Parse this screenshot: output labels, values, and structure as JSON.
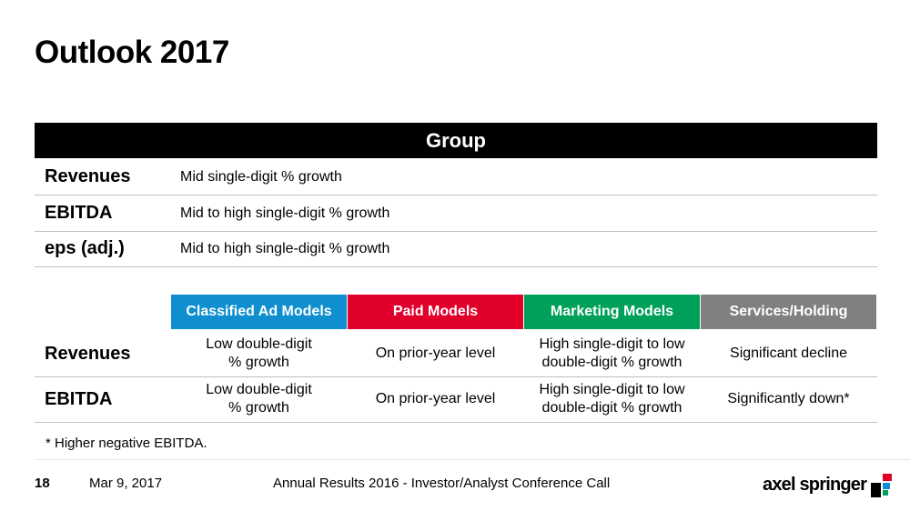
{
  "title": "Outlook 2017",
  "group": {
    "header": "Group",
    "rows": [
      {
        "label": "Revenues",
        "value": "Mid single-digit % growth"
      },
      {
        "label": "EBITDA",
        "value": "Mid to high single-digit % growth"
      },
      {
        "label": "eps (adj.)",
        "value": "Mid to high single-digit % growth"
      }
    ]
  },
  "segments": {
    "headers": [
      {
        "label": "Classified Ad Models",
        "color": "#0f8fcf"
      },
      {
        "label": "Paid Models",
        "color": "#e0002a"
      },
      {
        "label": "Marketing Models",
        "color": "#00a05a"
      },
      {
        "label": "Services/Holding",
        "color": "#808080"
      }
    ],
    "rows": [
      {
        "label": "Revenues",
        "cells": [
          [
            "Low double-digit",
            "% growth"
          ],
          [
            "On prior-year level"
          ],
          [
            "High single-digit to low",
            "double-digit % growth"
          ],
          [
            "Significant decline"
          ]
        ]
      },
      {
        "label": "EBITDA",
        "cells": [
          [
            "Low double-digit",
            "% growth"
          ],
          [
            "On prior-year level"
          ],
          [
            "High single-digit to low",
            "double-digit % growth"
          ],
          [
            "Significantly down*"
          ]
        ]
      }
    ]
  },
  "footnote": "* Higher negative EBITDA.",
  "footer": {
    "page_number": "18",
    "date": "Mar 9, 2017",
    "conference": "Annual Results 2016 - Investor/Analyst Conference Call",
    "logo_text": "axel springer"
  }
}
